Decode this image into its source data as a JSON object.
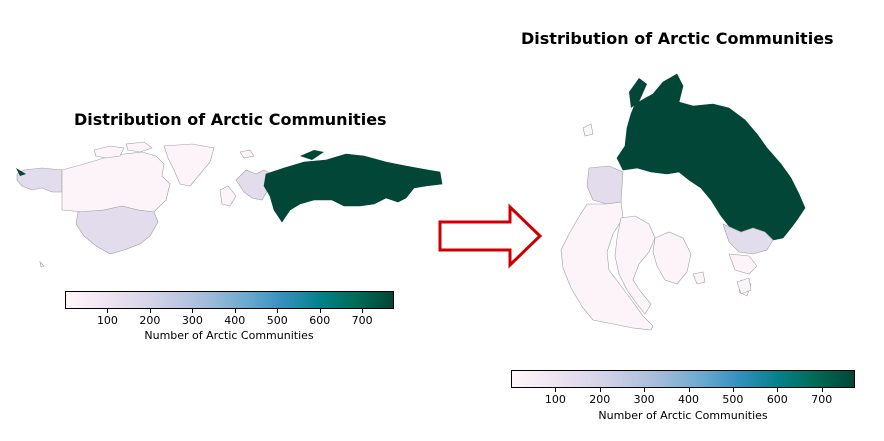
{
  "left_panel": {
    "title": "Distribution of Arctic Communities",
    "colorbar": {
      "label": "Number of Arctic Communities",
      "ticks": [
        "100",
        "200",
        "300",
        "400",
        "500",
        "600",
        "700"
      ],
      "min": 0,
      "max": 775
    }
  },
  "right_panel": {
    "title": "Distribution of Arctic Communities",
    "colorbar": {
      "label": "Number of Arctic Communities",
      "ticks": [
        "100",
        "200",
        "300",
        "400",
        "500",
        "600",
        "700"
      ],
      "min": 0,
      "max": 775
    }
  },
  "arrow": {
    "color": "#cc0000"
  },
  "colors": {
    "low": "#fff7fb",
    "mid_low": "#e2dcec",
    "high": "#014636",
    "border": "#a0a0a0"
  }
}
